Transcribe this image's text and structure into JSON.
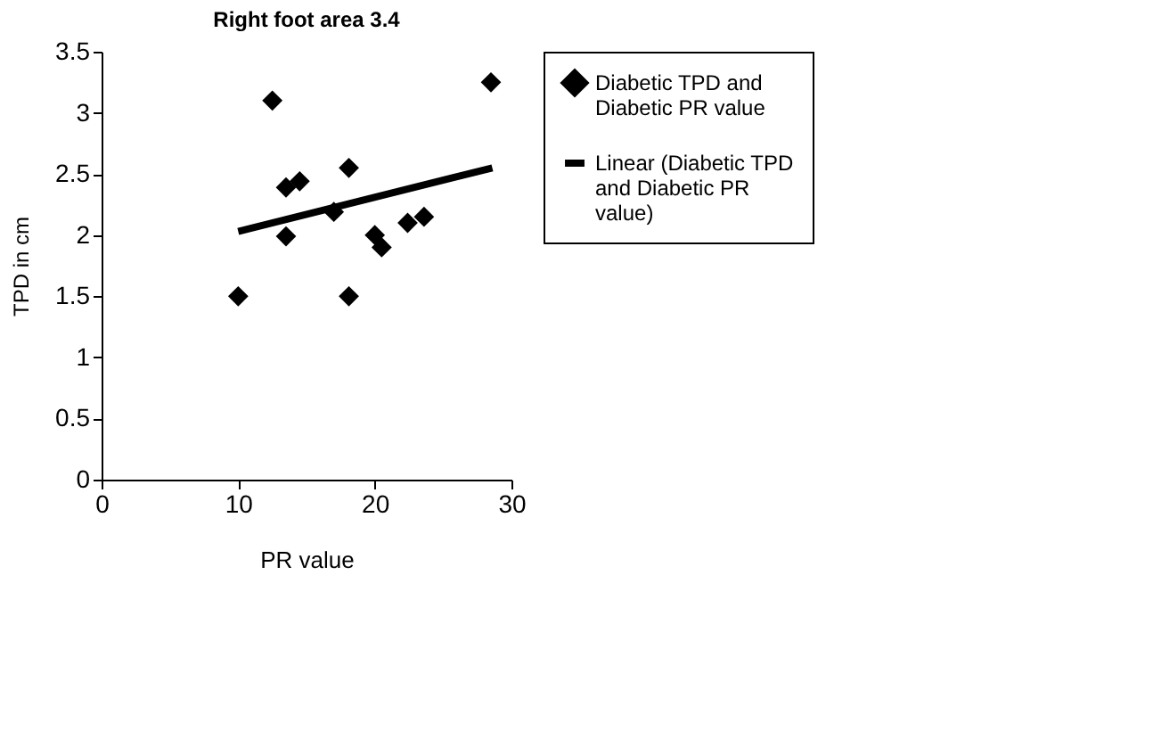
{
  "chart_data": {
    "type": "scatter",
    "title": "Right foot area 3.4",
    "xlabel": "PR value",
    "ylabel": "TPD in cm",
    "xlim": [
      0,
      30
    ],
    "xticks": [
      0,
      10,
      20,
      30
    ],
    "ylim": [
      0,
      3.5
    ],
    "yticks": [
      0,
      0.5,
      1,
      1.5,
      2,
      2.5,
      3,
      3.5
    ],
    "grid": false,
    "legend": "right",
    "series": [
      {
        "name": "Diabetic TPD and Diabetic PR value",
        "type": "scatter",
        "marker": "diamond",
        "color": "#000000",
        "x": [
          10,
          12.5,
          13.5,
          14.5,
          13.5,
          17.0,
          18.1,
          18.1,
          20.0,
          20.5,
          22.4,
          23.6,
          28.5
        ],
        "values": [
          1.5,
          3.1,
          2.39,
          2.44,
          1.99,
          2.19,
          2.55,
          1.5,
          2.0,
          1.9,
          2.1,
          2.15,
          3.25
        ]
      },
      {
        "name": "Linear (Diabetic TPD and Diabetic PR value)",
        "type": "line",
        "line_style": "solid",
        "color": "#000000",
        "x": [
          10,
          28.6
        ],
        "values": [
          2.03,
          2.55
        ]
      }
    ]
  }
}
